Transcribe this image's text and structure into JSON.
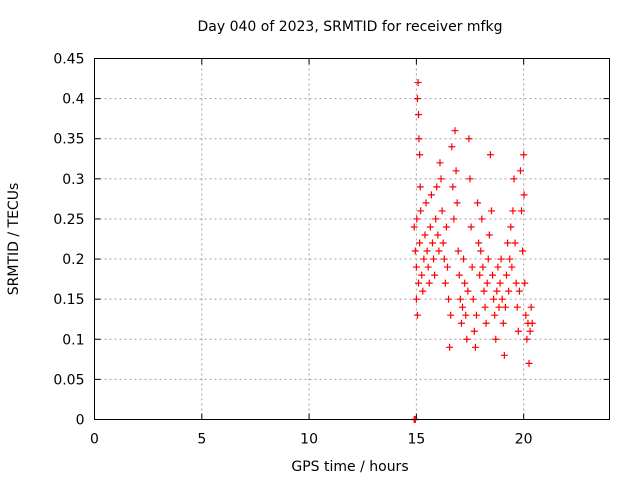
{
  "chart_data": {
    "type": "scatter",
    "title": "Day 040 of 2023, SRMTID for receiver mfkg",
    "xlabel": "GPS time / hours",
    "ylabel": "SRMTID / TECUs",
    "xlim": [
      0,
      24
    ],
    "ylim": [
      0,
      0.45
    ],
    "xticks": [
      0,
      5,
      10,
      15,
      20
    ],
    "xtick_labels": [
      "0",
      "5",
      "10",
      "15",
      "20"
    ],
    "yticks": [
      0,
      0.05,
      0.1,
      0.15,
      0.2,
      0.25,
      0.3,
      0.35,
      0.4,
      0.45
    ],
    "ytick_labels": [
      "0",
      "0.05",
      "0.1",
      "0.15",
      "0.2",
      "0.25",
      "0.3",
      "0.35",
      "0.4",
      "0.45"
    ],
    "grid": true,
    "marker": "+",
    "marker_color": "#ff0000",
    "series": [
      {
        "name": "SRMTID",
        "points": [
          [
            14.9,
            0.0
          ],
          [
            14.92,
            0.0
          ],
          [
            14.95,
            0.0
          ],
          [
            14.9,
            0.24
          ],
          [
            14.95,
            0.21
          ],
          [
            15.0,
            0.19
          ],
          [
            15.02,
            0.25
          ],
          [
            15.05,
            0.4
          ],
          [
            15.08,
            0.42
          ],
          [
            15.1,
            0.38
          ],
          [
            15.12,
            0.35
          ],
          [
            15.15,
            0.33
          ],
          [
            15.18,
            0.29
          ],
          [
            15.0,
            0.15
          ],
          [
            15.05,
            0.13
          ],
          [
            15.1,
            0.17
          ],
          [
            15.15,
            0.22
          ],
          [
            15.2,
            0.26
          ],
          [
            15.25,
            0.18
          ],
          [
            15.3,
            0.16
          ],
          [
            15.35,
            0.2
          ],
          [
            15.4,
            0.23
          ],
          [
            15.45,
            0.27
          ],
          [
            15.5,
            0.21
          ],
          [
            15.55,
            0.19
          ],
          [
            15.6,
            0.17
          ],
          [
            15.65,
            0.24
          ],
          [
            15.7,
            0.28
          ],
          [
            15.75,
            0.22
          ],
          [
            15.8,
            0.2
          ],
          [
            15.85,
            0.18
          ],
          [
            15.9,
            0.25
          ],
          [
            15.95,
            0.29
          ],
          [
            16.0,
            0.23
          ],
          [
            16.05,
            0.21
          ],
          [
            16.1,
            0.32
          ],
          [
            16.15,
            0.3
          ],
          [
            16.2,
            0.26
          ],
          [
            16.25,
            0.22
          ],
          [
            16.3,
            0.2
          ],
          [
            16.35,
            0.17
          ],
          [
            16.4,
            0.24
          ],
          [
            16.45,
            0.19
          ],
          [
            16.5,
            0.15
          ],
          [
            16.55,
            0.09
          ],
          [
            16.6,
            0.13
          ],
          [
            16.65,
            0.34
          ],
          [
            16.7,
            0.29
          ],
          [
            16.75,
            0.25
          ],
          [
            16.8,
            0.36
          ],
          [
            16.85,
            0.31
          ],
          [
            16.9,
            0.27
          ],
          [
            16.95,
            0.21
          ],
          [
            17.0,
            0.18
          ],
          [
            17.05,
            0.15
          ],
          [
            17.1,
            0.12
          ],
          [
            17.15,
            0.14
          ],
          [
            17.2,
            0.2
          ],
          [
            17.25,
            0.17
          ],
          [
            17.3,
            0.13
          ],
          [
            17.35,
            0.1
          ],
          [
            17.4,
            0.16
          ],
          [
            17.45,
            0.35
          ],
          [
            17.5,
            0.3
          ],
          [
            17.55,
            0.24
          ],
          [
            17.6,
            0.19
          ],
          [
            17.65,
            0.15
          ],
          [
            17.7,
            0.11
          ],
          [
            17.75,
            0.09
          ],
          [
            17.8,
            0.13
          ],
          [
            17.85,
            0.27
          ],
          [
            17.9,
            0.22
          ],
          [
            17.95,
            0.18
          ],
          [
            18.0,
            0.21
          ],
          [
            18.05,
            0.25
          ],
          [
            18.1,
            0.19
          ],
          [
            18.15,
            0.16
          ],
          [
            18.2,
            0.14
          ],
          [
            18.25,
            0.12
          ],
          [
            18.3,
            0.17
          ],
          [
            18.35,
            0.2
          ],
          [
            18.4,
            0.23
          ],
          [
            18.45,
            0.33
          ],
          [
            18.5,
            0.26
          ],
          [
            18.55,
            0.18
          ],
          [
            18.6,
            0.15
          ],
          [
            18.65,
            0.13
          ],
          [
            18.7,
            0.1
          ],
          [
            18.75,
            0.16
          ],
          [
            18.8,
            0.19
          ],
          [
            18.85,
            0.14
          ],
          [
            18.9,
            0.17
          ],
          [
            18.95,
            0.2
          ],
          [
            19.0,
            0.15
          ],
          [
            19.05,
            0.12
          ],
          [
            19.1,
            0.08
          ],
          [
            19.15,
            0.14
          ],
          [
            19.2,
            0.18
          ],
          [
            19.25,
            0.22
          ],
          [
            19.3,
            0.16
          ],
          [
            19.35,
            0.2
          ],
          [
            19.4,
            0.24
          ],
          [
            19.45,
            0.19
          ],
          [
            19.5,
            0.26
          ],
          [
            19.55,
            0.3
          ],
          [
            19.6,
            0.22
          ],
          [
            19.65,
            0.17
          ],
          [
            19.7,
            0.14
          ],
          [
            19.75,
            0.11
          ],
          [
            19.8,
            0.16
          ],
          [
            19.85,
            0.31
          ],
          [
            19.9,
            0.26
          ],
          [
            19.95,
            0.21
          ],
          [
            20.0,
            0.33
          ],
          [
            20.02,
            0.28
          ],
          [
            20.05,
            0.17
          ],
          [
            20.1,
            0.13
          ],
          [
            20.15,
            0.1
          ],
          [
            20.2,
            0.12
          ],
          [
            20.25,
            0.07
          ],
          [
            20.3,
            0.11
          ],
          [
            20.35,
            0.14
          ],
          [
            20.4,
            0.12
          ]
        ]
      }
    ]
  }
}
